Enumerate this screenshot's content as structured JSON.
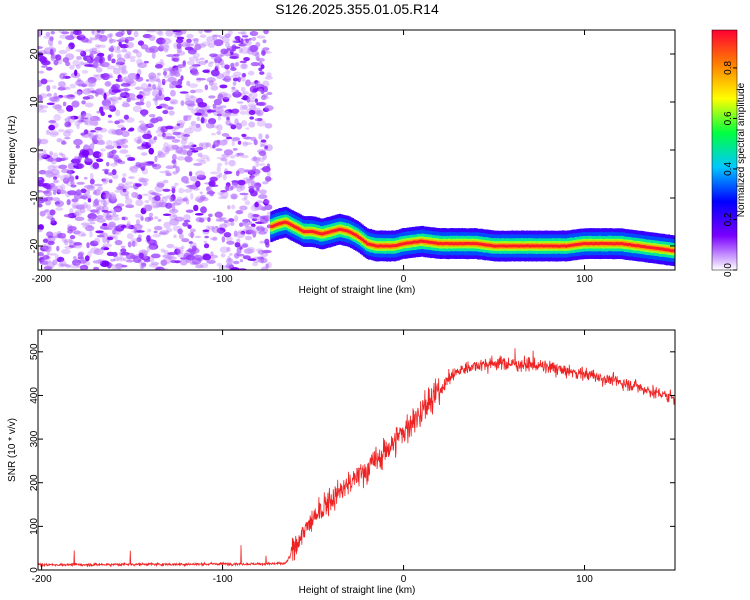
{
  "figure": {
    "title": "S126.2025.355.01.05.R14"
  },
  "chart_data": [
    {
      "type": "heatmap",
      "xlabel": "Height of straight line (km)",
      "ylabel": "Frequency (Hz)",
      "xlim": [
        -202,
        150
      ],
      "ylim": [
        -25,
        25
      ],
      "xticks": [
        -200,
        -100,
        0,
        100
      ],
      "yticks": [
        -20,
        -10,
        0,
        10,
        20
      ],
      "colorbar": {
        "label": "Normalized spectral amplitude",
        "range": [
          0,
          0.95
        ],
        "ticks": [
          "0.0",
          "0.2",
          "0.4",
          "0.6",
          "0.8"
        ],
        "stops": [
          "#ffffff",
          "#7a00ff",
          "#0000ff",
          "#00c8ff",
          "#00ff40",
          "#ffff00",
          "#ff8000",
          "#ff0033"
        ]
      },
      "noise_region": {
        "x": [
          -202,
          -74
        ],
        "y": [
          -25,
          25
        ],
        "amplitude": [
          0.05,
          0.45
        ]
      },
      "ridge": {
        "x": [
          -73,
          -70,
          -65,
          -60,
          -55,
          -50,
          -45,
          -40,
          -35,
          -30,
          -25,
          -20,
          -15,
          -10,
          -5,
          0,
          10,
          20,
          30,
          40,
          50,
          60,
          70,
          80,
          90,
          100,
          110,
          120,
          130,
          140,
          150
        ],
        "frequency": [
          -16,
          -15.5,
          -15,
          -16,
          -17,
          -17,
          -17.5,
          -17,
          -16.5,
          -17,
          -18,
          -19.5,
          -20,
          -20,
          -20,
          -19.5,
          -19,
          -19.5,
          -19.5,
          -19.5,
          -20,
          -20,
          -20,
          -20,
          -20,
          -19.5,
          -19.5,
          -19.5,
          -20,
          -20.5,
          -21
        ]
      },
      "grid": false
    },
    {
      "type": "line",
      "xlabel": "Height of straight line (km)",
      "ylabel": "SNR (10 * v/v)",
      "xlim": [
        -202,
        150
      ],
      "ylim": [
        0,
        550
      ],
      "xticks": [
        -200,
        -100,
        0,
        100
      ],
      "yticks": [
        0,
        100,
        200,
        300,
        400,
        500
      ],
      "grid": false,
      "series": [
        {
          "color": "#ee2222",
          "x": [
            -202,
            -180,
            -150,
            -120,
            -100,
            -80,
            -65,
            -62,
            -55,
            -45,
            -35,
            -25,
            -15,
            -5,
            5,
            15,
            20,
            25,
            30,
            40,
            50,
            60,
            70,
            80,
            90,
            100,
            110,
            120,
            130,
            140,
            150
          ],
          "values": [
            12,
            12,
            13,
            13,
            14,
            14,
            15,
            40,
            90,
            140,
            180,
            215,
            250,
            295,
            340,
            385,
            410,
            440,
            455,
            470,
            475,
            472,
            470,
            465,
            455,
            450,
            440,
            430,
            420,
            405,
            395
          ]
        }
      ]
    }
  ]
}
